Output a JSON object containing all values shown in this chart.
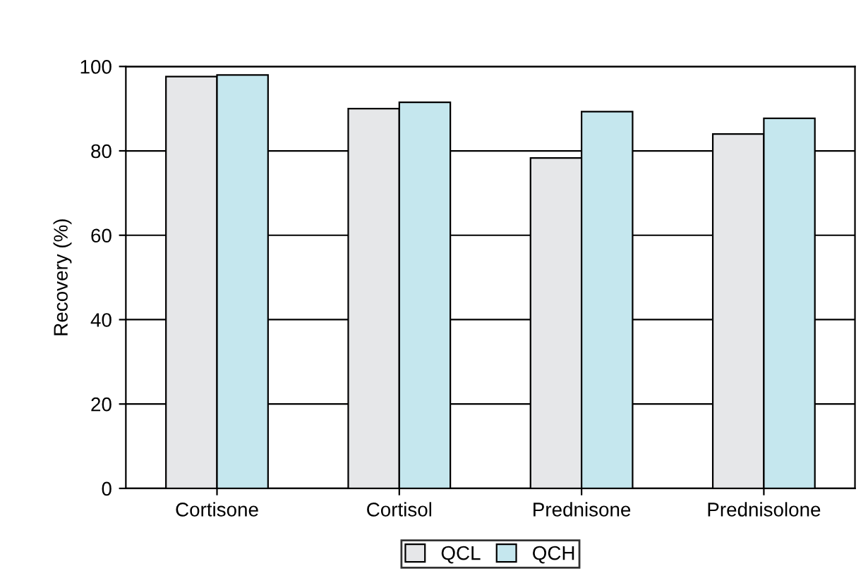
{
  "chart_data": {
    "type": "bar",
    "ylabel": "Recovery (%)",
    "categories": [
      "Cortisone",
      "Cortisol",
      "Prednisone",
      "Prednisolone"
    ],
    "series": [
      {
        "name": "QCL",
        "color": "#e6e7e9",
        "values": [
          97.6,
          90,
          78.3,
          84
        ]
      },
      {
        "name": "QCH",
        "color": "#c5e7ee",
        "values": [
          98,
          91.5,
          89.3,
          87.7
        ]
      }
    ],
    "ylim": [
      0,
      100
    ],
    "yticks": [
      0,
      20,
      40,
      60,
      80,
      100
    ],
    "grid": "y",
    "legend": "bottom"
  }
}
